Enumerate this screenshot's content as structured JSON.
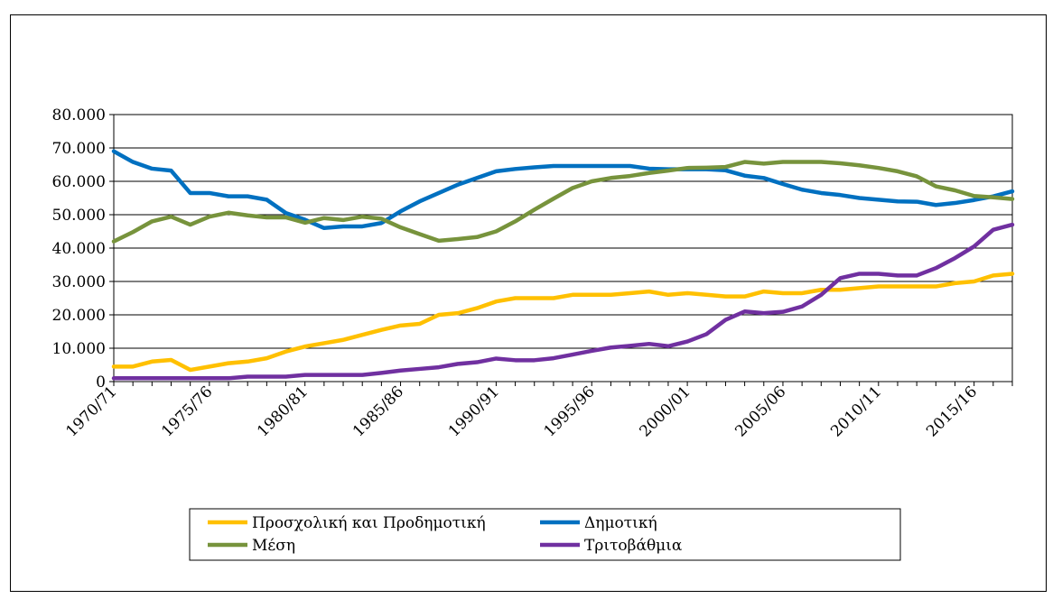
{
  "chart_data": {
    "type": "line",
    "title": "",
    "xlabel": "",
    "ylabel": "",
    "ylim": [
      0,
      80000
    ],
    "yticks": [
      0,
      10000,
      20000,
      30000,
      40000,
      50000,
      60000,
      70000,
      80000
    ],
    "ytick_labels": [
      "0",
      "10.000",
      "20.000",
      "30.000",
      "40.000",
      "50.000",
      "60.000",
      "70.000",
      "80.000"
    ],
    "grid": "horizontal",
    "legend_position": "bottom",
    "x_labels": [
      "1970/71",
      "1975/76",
      "1980/81",
      "1985/86",
      "1990/91",
      "1995/96",
      "2000/01",
      "2005/06",
      "2010/11",
      "2015/16"
    ],
    "x_label_indices": [
      0,
      5,
      10,
      15,
      20,
      25,
      30,
      35,
      40,
      45
    ],
    "n_points": 48,
    "series": [
      {
        "name": "Προσχολική και Προδημοτική",
        "color": "#FFC000",
        "values": [
          4500,
          4500,
          6000,
          6500,
          3500,
          4500,
          5500,
          6000,
          7000,
          9000,
          10500,
          11500,
          12500,
          14000,
          15500,
          16800,
          17300,
          20000,
          20500,
          22000,
          24000,
          25000,
          25000,
          25000,
          26000,
          26000,
          26000,
          26500,
          27000,
          26000,
          26500,
          26000,
          25500,
          25500,
          27000,
          26500,
          26500,
          27500,
          27500,
          28000,
          28500,
          28500,
          28500,
          28500,
          29500,
          30000,
          31800,
          32300
        ]
      },
      {
        "name": "Δημοτική",
        "color": "#0070C0",
        "values": [
          69000,
          65800,
          63800,
          63200,
          56500,
          56500,
          55500,
          55500,
          54500,
          50500,
          48500,
          46000,
          46500,
          46500,
          47500,
          51000,
          54000,
          56500,
          59000,
          61000,
          63000,
          63700,
          64200,
          64600,
          64600,
          64600,
          64600,
          64600,
          63800,
          63600,
          63600,
          63600,
          63300,
          61700,
          61000,
          59200,
          57500,
          56500,
          55900,
          55000,
          54500,
          54000,
          53900,
          52900,
          53500,
          54400,
          55500,
          57000
        ]
      },
      {
        "name": "Μέση",
        "color": "#77933C",
        "values": [
          42000,
          44800,
          48000,
          49400,
          47000,
          49400,
          50600,
          49800,
          49200,
          49200,
          47600,
          49000,
          48400,
          49400,
          48800,
          46200,
          44200,
          42200,
          42700,
          43300,
          45000,
          48000,
          51500,
          54800,
          58000,
          60000,
          61000,
          61600,
          62500,
          63200,
          64000,
          64100,
          64300,
          65800,
          65300,
          65800,
          65800,
          65800,
          65400,
          64800,
          64000,
          63000,
          61500,
          58500,
          57300,
          55600,
          55200,
          54700
        ]
      },
      {
        "name": "Τριτοβάθμια",
        "color": "#7030A0",
        "values": [
          1000,
          1000,
          1000,
          1000,
          1000,
          1000,
          1000,
          1500,
          1500,
          1500,
          2000,
          2000,
          2000,
          2000,
          2600,
          3300,
          3800,
          4300,
          5300,
          5800,
          6900,
          6400,
          6400,
          7000,
          8100,
          9200,
          10200,
          10700,
          11300,
          10600,
          12000,
          14200,
          18500,
          21000,
          20500,
          20900,
          22500,
          26000,
          31000,
          32300,
          32300,
          31800,
          31800,
          34000,
          37000,
          40500,
          45500,
          47000
        ]
      }
    ]
  }
}
